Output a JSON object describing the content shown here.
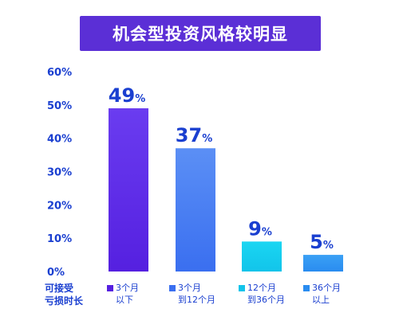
{
  "title": "机会型投资风格较明显",
  "xaxis_title": [
    "可接受",
    "亏损时长"
  ],
  "colors": {
    "banner": "#5b2fd6",
    "label": "#1a3fd0",
    "axis_text": "#1a3fd0"
  },
  "chart_data": {
    "type": "bar",
    "title": "机会型投资风格较明显",
    "xlabel": "可接受亏损时长",
    "ylabel": "",
    "ylim": [
      0,
      60
    ],
    "yticks": [
      "0%",
      "10%",
      "20%",
      "30%",
      "40%",
      "50%",
      "60%"
    ],
    "categories": [
      "3个月以下",
      "3个月到12个月",
      "12个月到36个月",
      "36个月以上"
    ],
    "values": [
      49,
      37,
      9,
      5
    ],
    "value_labels": [
      "49",
      "37",
      "9",
      "5"
    ],
    "value_suffix": "%",
    "bar_colors": [
      [
        "#5520e0",
        "#6a3cf0"
      ],
      [
        "#3a6ff0",
        "#5b8ff5"
      ],
      [
        "#12c4ea",
        "#1ad6f2"
      ],
      [
        "#2a8cf0",
        "#3aa0f5"
      ]
    ],
    "legend": [
      {
        "lines": [
          "3个月",
          "以下"
        ],
        "color": "#5520e0"
      },
      {
        "lines": [
          "3个月",
          "到12个月"
        ],
        "color": "#3a6ff0"
      },
      {
        "lines": [
          "12个月",
          "到36个月"
        ],
        "color": "#12c4ea"
      },
      {
        "lines": [
          "36个月",
          "以上"
        ],
        "color": "#2a8cf0"
      }
    ],
    "grid": false,
    "legend_position": "bottom"
  }
}
